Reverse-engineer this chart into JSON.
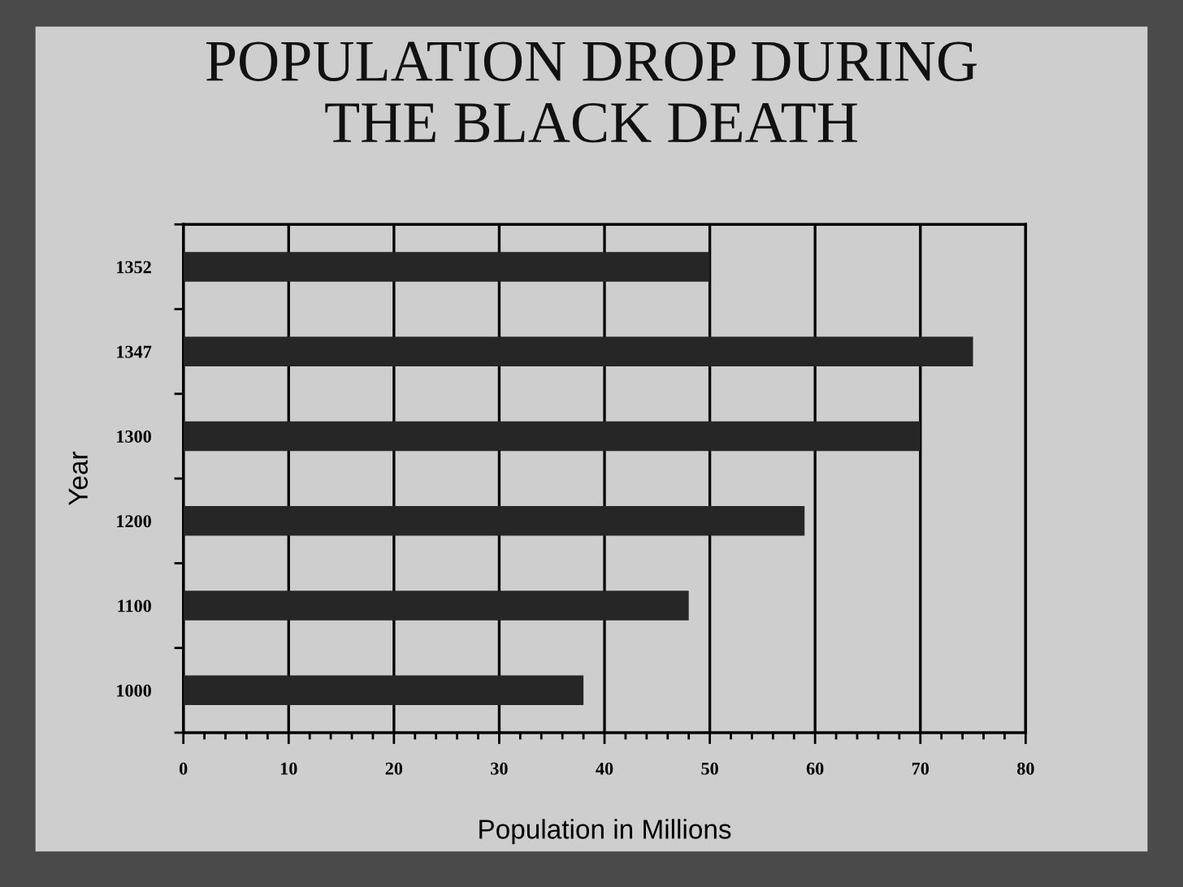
{
  "chart_data": {
    "type": "bar",
    "orientation": "horizontal",
    "title": "POPULATION DROP DURING\nTHE BLACK DEATH",
    "xlabel": "Population in Millions",
    "ylabel": "Year",
    "categories": [
      "1352",
      "1347",
      "1300",
      "1200",
      "1100",
      "1000"
    ],
    "values": [
      50,
      75,
      70,
      59,
      48,
      38
    ],
    "color": "#262626",
    "xlim": [
      0,
      80
    ],
    "xticks": [
      0,
      10,
      20,
      30,
      40,
      50,
      60,
      70,
      80
    ],
    "grid": "x"
  }
}
